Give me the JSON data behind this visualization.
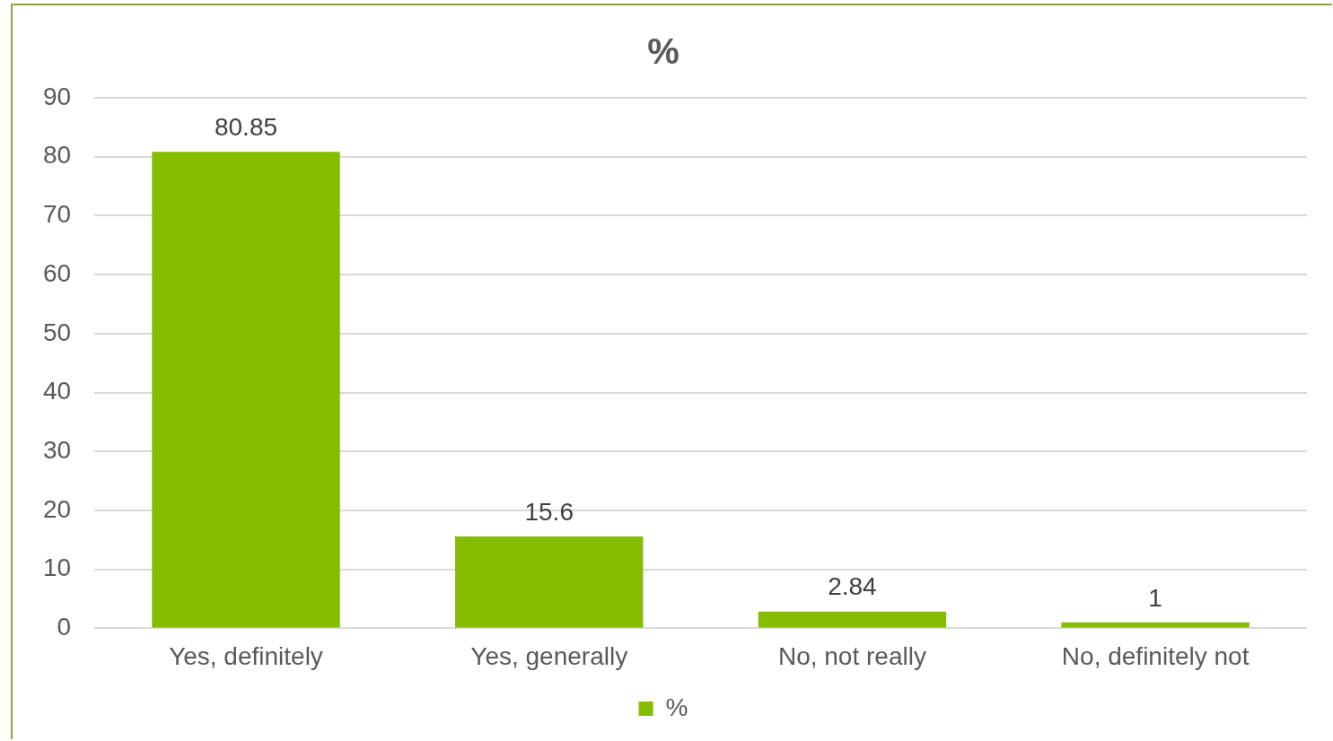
{
  "chart_data": {
    "type": "bar",
    "title": "%",
    "categories": [
      "Yes, definitely",
      "Yes, generally",
      "No, not really",
      "No, definitely not"
    ],
    "series": [
      {
        "name": "%",
        "color": "#84bd00",
        "values": [
          80.85,
          15.6,
          2.84,
          1
        ]
      }
    ],
    "ylim": [
      0,
      90
    ],
    "yticks": [
      0,
      10,
      20,
      30,
      40,
      50,
      60,
      70,
      80,
      90
    ],
    "grid": "y",
    "legend": "bottom",
    "data_labels": true
  }
}
